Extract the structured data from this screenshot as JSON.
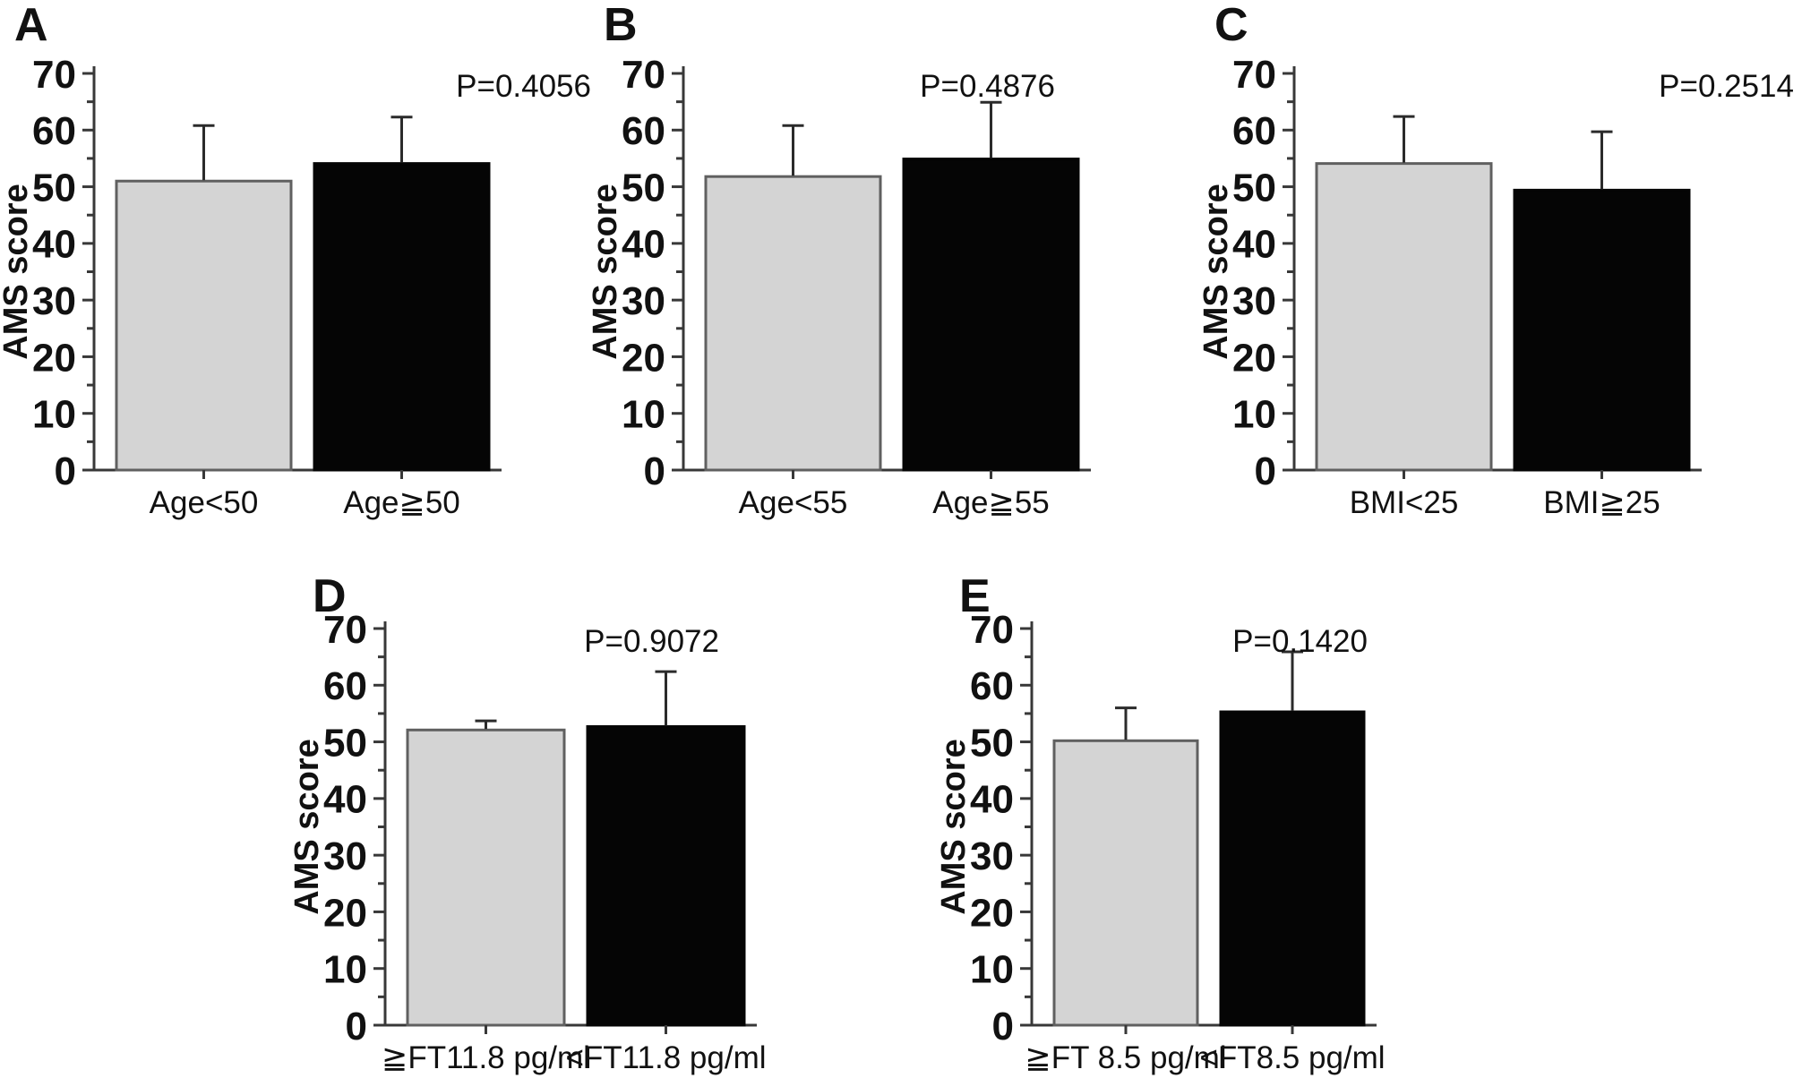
{
  "style": {
    "background": "#ffffff",
    "gray_bar_fill": "#d4d4d4",
    "gray_bar_stroke": "#606060",
    "black_bar_fill": "#050505",
    "error_bar_color": "#2b2b2b",
    "axis_color": "#383838",
    "text_color": "#111111"
  },
  "chart_data": [
    {
      "type": "bar",
      "panel_label": "A",
      "p_value_label": "P=0.4056",
      "ylabel": "AMS score",
      "ylim": [
        0,
        70
      ],
      "ytick_major_step": 10,
      "ytick_minor_step": 5,
      "grid": false,
      "legend": false,
      "categories": [
        "Age<50",
        "Age≧50"
      ],
      "values": [
        51.0,
        54.1
      ],
      "errors_plus": [
        9.8,
        8.2
      ],
      "bar_styles": [
        "gray",
        "black"
      ]
    },
    {
      "type": "bar",
      "panel_label": "B",
      "p_value_label": "P=0.4876",
      "ylabel": "AMS score",
      "ylim": [
        0,
        70
      ],
      "ytick_major_step": 10,
      "ytick_minor_step": 5,
      "grid": false,
      "legend": false,
      "categories": [
        "Age<55",
        "Age≧55"
      ],
      "values": [
        51.8,
        54.9
      ],
      "errors_plus": [
        9.0,
        10.0
      ],
      "bar_styles": [
        "gray",
        "black"
      ]
    },
    {
      "type": "bar",
      "panel_label": "C",
      "p_value_label": "P=0.2514",
      "ylabel": "AMS score",
      "ylim": [
        0,
        70
      ],
      "ytick_major_step": 10,
      "ytick_minor_step": 5,
      "grid": false,
      "legend": false,
      "categories": [
        "BMI<25",
        "BMI≧25"
      ],
      "values": [
        54.1,
        49.4
      ],
      "errors_plus": [
        8.3,
        10.3
      ],
      "bar_styles": [
        "gray",
        "black"
      ]
    },
    {
      "type": "bar",
      "panel_label": "D",
      "p_value_label": "P=0.9072",
      "ylabel": "AMS score",
      "ylim": [
        0,
        70
      ],
      "ytick_major_step": 10,
      "ytick_minor_step": 5,
      "grid": false,
      "legend": false,
      "categories": [
        "≧FT11.8 pg/ml",
        "<FT11.8 pg/ml"
      ],
      "values": [
        52.1,
        52.7
      ],
      "errors_plus": [
        1.6,
        9.7
      ],
      "bar_styles": [
        "gray",
        "black"
      ]
    },
    {
      "type": "bar",
      "panel_label": "E",
      "p_value_label": "P=0.1420",
      "ylabel": "AMS score",
      "ylim": [
        0,
        70
      ],
      "ytick_major_step": 10,
      "ytick_minor_step": 5,
      "grid": false,
      "legend": false,
      "categories": [
        "≧FT 8.5 pg/ml",
        "<FT8.5 pg/ml"
      ],
      "values": [
        50.2,
        55.3
      ],
      "errors_plus": [
        5.8,
        10.6
      ],
      "bar_styles": [
        "gray",
        "black"
      ]
    }
  ]
}
